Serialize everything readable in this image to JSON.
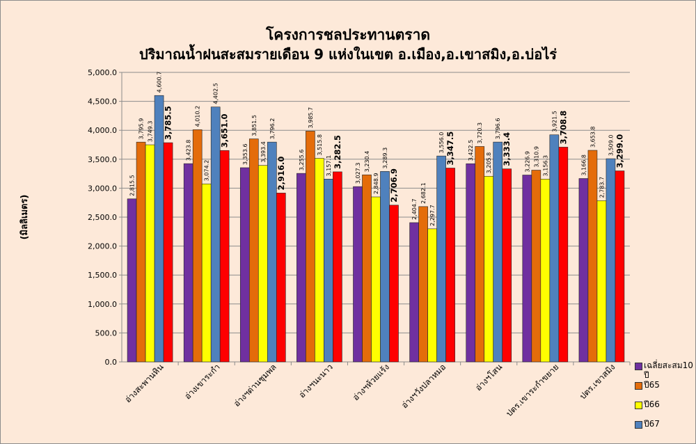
{
  "chart_data": {
    "type": "bar",
    "title": "โครงการชลประทานตราด",
    "subtitle": "ปริมาณน้ำฝนสะสมรายเดือน 9 แห่งในเขต อ.เมือง,อ.เขาสมิง,อ.บ่อไร่",
    "ylabel": "(มิลลิเมตร)",
    "ylim": [
      0,
      5000
    ],
    "yticks": [
      "0.0",
      "500.0",
      "1,000.0",
      "1,500.0",
      "2,000.0",
      "2,500.0",
      "3,000.0",
      "3,500.0",
      "4,000.0",
      "4,500.0",
      "5,000.0"
    ],
    "grid": true,
    "legend_position": "bottom-right",
    "categories": [
      "อ่างสะพานหิน",
      "อ่างเขาระกำ",
      "อ่างฯด่านชุมพล",
      "อ่างฯนะนาว",
      "อ่างฯห้วยแร้ง",
      "อ่างฯวังปลาหมอ",
      "อ่างฯโสน",
      "ปตร.เขาระกำขยาย",
      "ปตร.เขาสมิง"
    ],
    "series": [
      {
        "name": "เฉลี่ยสะสม10 ปี",
        "color": "#7030a0",
        "values": [
          2815.5,
          3423.8,
          3353.6,
          3255.6,
          3027.3,
          2404.7,
          3422.5,
          3226.9,
          3166.8
        ],
        "labels": [
          "2,815.5",
          "3,423.8",
          "3,353.6",
          "3,255.6",
          "3,027.3",
          "2,404.7",
          "3,422.5",
          "3,226.9",
          "3,166.8"
        ]
      },
      {
        "name": "ปี65",
        "color": "#e46c0a",
        "values": [
          3795.9,
          4010.2,
          3851.5,
          3985.7,
          3230.4,
          2682.1,
          3720.3,
          3310.9,
          3653.8
        ],
        "labels": [
          "3,795.9",
          "4,010.2",
          "3,851.5",
          "3,985.7",
          "3,230.4",
          "2,682.1",
          "3,720.3",
          "3,310.9",
          "3,653.8"
        ]
      },
      {
        "name": "ปี66",
        "color": "#ffff00",
        "values": [
          3749.3,
          3074.2,
          3393.4,
          3515.8,
          2848.9,
          2297.7,
          3205.8,
          3156.3,
          2783.7
        ],
        "labels": [
          "3,749.3",
          "3,074.2",
          "3,393.4",
          "3,515.8",
          "2,848.9",
          "2,297.7",
          "3,205.8",
          "3,156.3",
          "2,783.7"
        ]
      },
      {
        "name": "ปี67",
        "color": "#4f81bd",
        "values": [
          4600.7,
          4402.5,
          3796.2,
          3157.1,
          3289.3,
          3556.0,
          3796.6,
          3921.5,
          3509.0
        ],
        "labels": [
          "4,600.7",
          "4,402.5",
          "3,796.2",
          "3,157.1",
          "3,289.3",
          "3,556.0",
          "3,796.6",
          "3,921.5",
          "3,509.0"
        ]
      },
      {
        "name": "",
        "color": "#ff0000",
        "values": [
          3785.5,
          3651.0,
          2916.0,
          3282.5,
          2706.9,
          3347.5,
          3333.4,
          3708.8,
          3299.0
        ],
        "labels": [
          "3,785.5",
          "3,651.0",
          "2,916.0",
          "3,282.5",
          "2,706.9",
          "3,347.5",
          "3,333.4",
          "3,708.8",
          "3,299.0"
        ]
      }
    ]
  }
}
